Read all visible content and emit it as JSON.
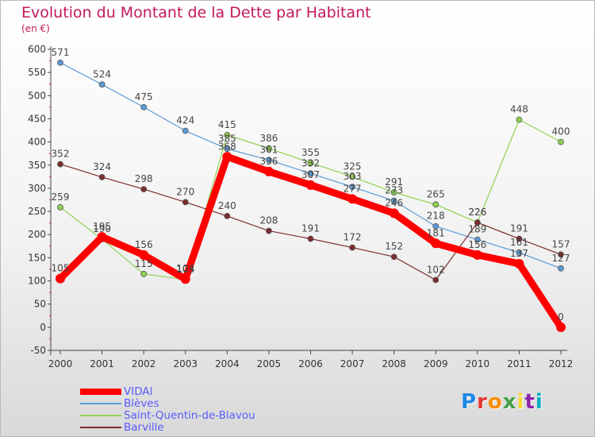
{
  "title": "Evolution du Montant de la Dette par Habitant",
  "subtitle": "(en €)",
  "logo": {
    "letters": [
      "P",
      "r",
      "o",
      "x",
      "i",
      "t",
      "i"
    ],
    "colors": [
      "#1e88e5",
      "#e53935",
      "#fb8c00",
      "#43a047",
      "#fdd835",
      "#8e24aa",
      "#00acc1"
    ]
  },
  "chart_data": {
    "type": "line",
    "title": "Evolution du Montant de la Dette par Habitant",
    "ylabel": "(en €)",
    "xlabel": "",
    "x": [
      "2000",
      "2001",
      "2002",
      "2003",
      "2004",
      "2005",
      "2006",
      "2007",
      "2008",
      "2009",
      "2010",
      "2011",
      "2012"
    ],
    "ylim": [
      -50,
      600
    ],
    "yticks": [
      "-50",
      "0",
      "50",
      "100",
      "150",
      "200",
      "250",
      "300",
      "350",
      "400",
      "450",
      "500",
      "550",
      "600"
    ],
    "grid": false,
    "legend_position": "bottom",
    "series": [
      {
        "name": "VIDAl",
        "color": "#ff0000",
        "width": 9,
        "values": [
          105,
          195,
          156,
          104,
          368,
          336,
          307,
          277,
          246,
          181,
          156,
          137,
          0
        ],
        "labels": [
          "105",
          "195",
          "156",
          "104",
          "368",
          "336",
          "307",
          "277",
          "246",
          "181",
          "156",
          "137",
          "0"
        ]
      },
      {
        "name": "Blèves",
        "color": "#5b9bd5",
        "width": 1.2,
        "values": [
          571,
          524,
          475,
          424,
          385,
          361,
          332,
          303,
          273,
          218,
          189,
          161,
          127
        ],
        "labels": [
          "571",
          "524",
          "475",
          "424",
          "385",
          "361",
          "332",
          "303",
          "273",
          "218",
          "189",
          "161",
          "127"
        ]
      },
      {
        "name": "Saint-Quentin-de-Blavou",
        "color": "#8fd14f",
        "width": 1.2,
        "values": [
          259,
          190,
          115,
          103,
          415,
          386,
          355,
          325,
          291,
          265,
          226,
          448,
          400
        ],
        "labels": [
          "259",
          "190",
          "115",
          "103",
          "415",
          "386",
          "355",
          "325",
          "291",
          "265",
          "226",
          "448",
          "400"
        ]
      },
      {
        "name": "Barville",
        "color": "#7b2c2c",
        "width": 1.2,
        "values": [
          352,
          324,
          298,
          270,
          240,
          208,
          191,
          172,
          152,
          102,
          226,
          191,
          157
        ],
        "labels": [
          "352",
          "324",
          "298",
          "270",
          "240",
          "208",
          "191",
          "172",
          "152",
          "102",
          "226",
          "191",
          "157"
        ]
      }
    ]
  }
}
